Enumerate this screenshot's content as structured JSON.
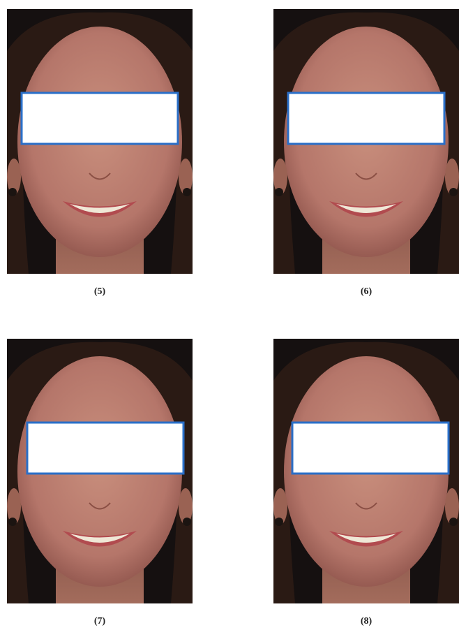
{
  "panels": [
    {
      "label": "(5)"
    },
    {
      "label": "(6)"
    },
    {
      "label": "(7)"
    },
    {
      "label": "(8)"
    }
  ]
}
